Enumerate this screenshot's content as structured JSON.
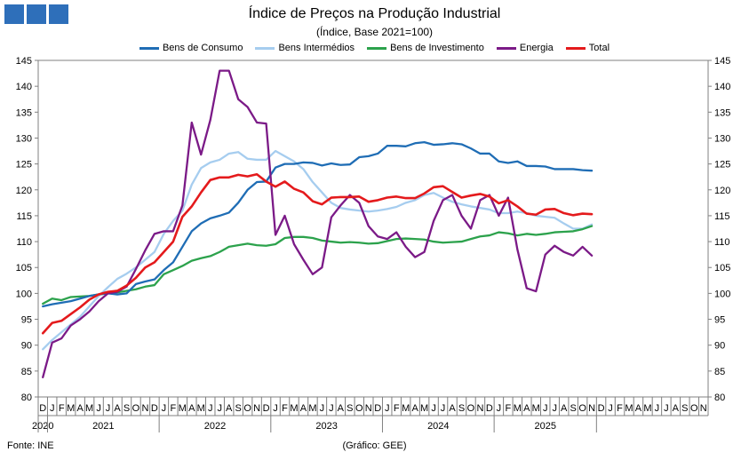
{
  "header": {
    "title": "Índice de Preços na Produção Industrial",
    "subtitle": "(Índice, Base 2021=100)"
  },
  "colors": {
    "logo": "#2e6fba",
    "bens_consumo": "#1f6db5",
    "bens_intermedios": "#a6cdef",
    "bens_investimento": "#2ca24c",
    "energia": "#7b1a87",
    "total": "#e41a1c"
  },
  "footer": {
    "source": "Fonte: INE",
    "credit": "(Gráfico: GEE)"
  },
  "chart_data": {
    "type": "line",
    "ylim": [
      80,
      145
    ],
    "yticks": [
      80,
      85,
      90,
      95,
      100,
      105,
      110,
      115,
      120,
      125,
      130,
      135,
      140,
      145
    ],
    "month_labels": [
      "D",
      "J",
      "F",
      "M",
      "A",
      "M",
      "J",
      "J",
      "A",
      "S",
      "O",
      "N",
      "D",
      "J",
      "F",
      "M",
      "A",
      "M",
      "J",
      "J",
      "A",
      "S",
      "O",
      "N",
      "D",
      "J",
      "F",
      "M",
      "A",
      "M",
      "J",
      "J",
      "A",
      "S",
      "O",
      "N",
      "D",
      "J",
      "F",
      "M",
      "A",
      "M",
      "J",
      "J",
      "A",
      "S",
      "O",
      "N",
      "D",
      "J",
      "F",
      "M",
      "A",
      "M",
      "J",
      "J",
      "A",
      "S",
      "O",
      "N",
      "D",
      "J",
      "F",
      "M",
      "A",
      "M",
      "J",
      "J",
      "A",
      "S",
      "O",
      "N"
    ],
    "year_labels": [
      {
        "label": "2020",
        "start": 0,
        "end": 0
      },
      {
        "label": "2021",
        "start": 1,
        "end": 12
      },
      {
        "label": "2022",
        "start": 13,
        "end": 24
      },
      {
        "label": "2023",
        "start": 25,
        "end": 36
      },
      {
        "label": "2024",
        "start": 37,
        "end": 48
      },
      {
        "label": "2025",
        "start": 49,
        "end": 59
      }
    ],
    "series": [
      {
        "name": "Bens de Consumo",
        "color_key": "bens_consumo",
        "values": [
          97.5,
          97.9,
          98.2,
          98.5,
          99.0,
          99.5,
          99.8,
          100.0,
          99.8,
          100.0,
          101.8,
          102.3,
          102.7,
          104.5,
          106.0,
          109.0,
          112.0,
          113.5,
          114.5,
          115.0,
          115.6,
          117.5,
          120.0,
          121.5,
          121.6,
          124.3,
          125.0,
          125.0,
          125.3,
          125.2,
          124.7,
          125.1,
          124.8,
          124.9,
          126.3,
          126.5,
          127.0,
          128.5,
          128.5,
          128.4,
          129.0,
          129.2,
          128.7,
          128.8,
          129.0,
          128.8,
          128.0,
          127.0,
          127.0,
          125.5,
          125.2,
          125.5,
          124.6,
          124.6,
          124.5,
          124.0,
          124.0,
          124.0,
          123.8,
          123.7
        ]
      },
      {
        "name": "Bens Intermédios",
        "color_key": "bens_intermedios",
        "values": [
          89.2,
          91.0,
          92.5,
          94.0,
          95.5,
          97.5,
          99.5,
          101.2,
          102.8,
          103.8,
          105.0,
          106.5,
          108.0,
          111.5,
          114.0,
          116.0,
          121.0,
          124.2,
          125.3,
          125.8,
          127.0,
          127.3,
          126.0,
          125.8,
          125.8,
          127.5,
          126.5,
          125.5,
          124.0,
          121.5,
          119.5,
          117.5,
          116.5,
          116.2,
          116.0,
          115.8,
          116.0,
          116.3,
          116.7,
          117.5,
          118.0,
          119.0,
          119.4,
          118.5,
          117.7,
          117.2,
          116.8,
          116.5,
          116.2,
          115.5,
          115.5,
          115.8,
          115.5,
          115.0,
          114.8,
          114.6,
          113.5,
          112.5,
          112.5,
          113.3
        ]
      },
      {
        "name": "Bens de Investimento",
        "color_key": "bens_investimento",
        "values": [
          98.0,
          99.0,
          98.7,
          99.3,
          99.4,
          99.5,
          99.8,
          100.0,
          100.2,
          100.5,
          100.8,
          101.3,
          101.6,
          103.7,
          104.5,
          105.3,
          106.3,
          106.8,
          107.2,
          108.0,
          109.0,
          109.3,
          109.6,
          109.3,
          109.2,
          109.5,
          110.7,
          110.9,
          110.9,
          110.7,
          110.2,
          110.0,
          109.8,
          109.9,
          109.8,
          109.6,
          109.7,
          110.1,
          110.5,
          110.6,
          110.5,
          110.4,
          110.0,
          109.8,
          109.9,
          110.0,
          110.5,
          111.0,
          111.2,
          111.8,
          111.6,
          111.2,
          111.5,
          111.3,
          111.5,
          111.8,
          111.9,
          112.0,
          112.4,
          113.0
        ]
      },
      {
        "name": "Energia",
        "color_key": "energia",
        "values": [
          83.8,
          90.5,
          91.3,
          93.8,
          95.0,
          96.5,
          98.5,
          100.0,
          100.3,
          101.3,
          104.7,
          108.3,
          111.5,
          112.0,
          112.0,
          117.0,
          133.0,
          126.8,
          133.5,
          143.0,
          143.0,
          137.5,
          136.0,
          133.0,
          132.8,
          111.3,
          115.0,
          109.5,
          106.5,
          103.7,
          105.0,
          114.7,
          117.0,
          119.0,
          117.5,
          113.0,
          111.0,
          110.5,
          111.8,
          109.0,
          107.0,
          108.0,
          114.0,
          118.0,
          119.0,
          115.0,
          112.5,
          118.0,
          119.0,
          115.0,
          118.5,
          108.5,
          101.0,
          100.4,
          107.5,
          109.2,
          108.0,
          107.3,
          109.0,
          107.3
        ]
      },
      {
        "name": "Total",
        "color_key": "total",
        "values": [
          92.3,
          94.3,
          94.7,
          96.0,
          97.3,
          98.8,
          99.8,
          100.3,
          100.5,
          101.5,
          103.0,
          105.0,
          106.0,
          108.0,
          110.0,
          114.8,
          116.8,
          119.5,
          121.9,
          122.4,
          122.4,
          122.9,
          122.6,
          123.0,
          121.6,
          120.6,
          121.6,
          120.2,
          119.5,
          117.8,
          117.2,
          118.5,
          118.6,
          118.6,
          118.7,
          117.7,
          118.0,
          118.5,
          118.7,
          118.4,
          118.4,
          119.3,
          120.5,
          120.7,
          119.6,
          118.5,
          118.9,
          119.2,
          118.7,
          117.4,
          118.0,
          116.8,
          115.4,
          115.2,
          116.2,
          116.3,
          115.5,
          115.1,
          115.4,
          115.3
        ]
      }
    ]
  }
}
